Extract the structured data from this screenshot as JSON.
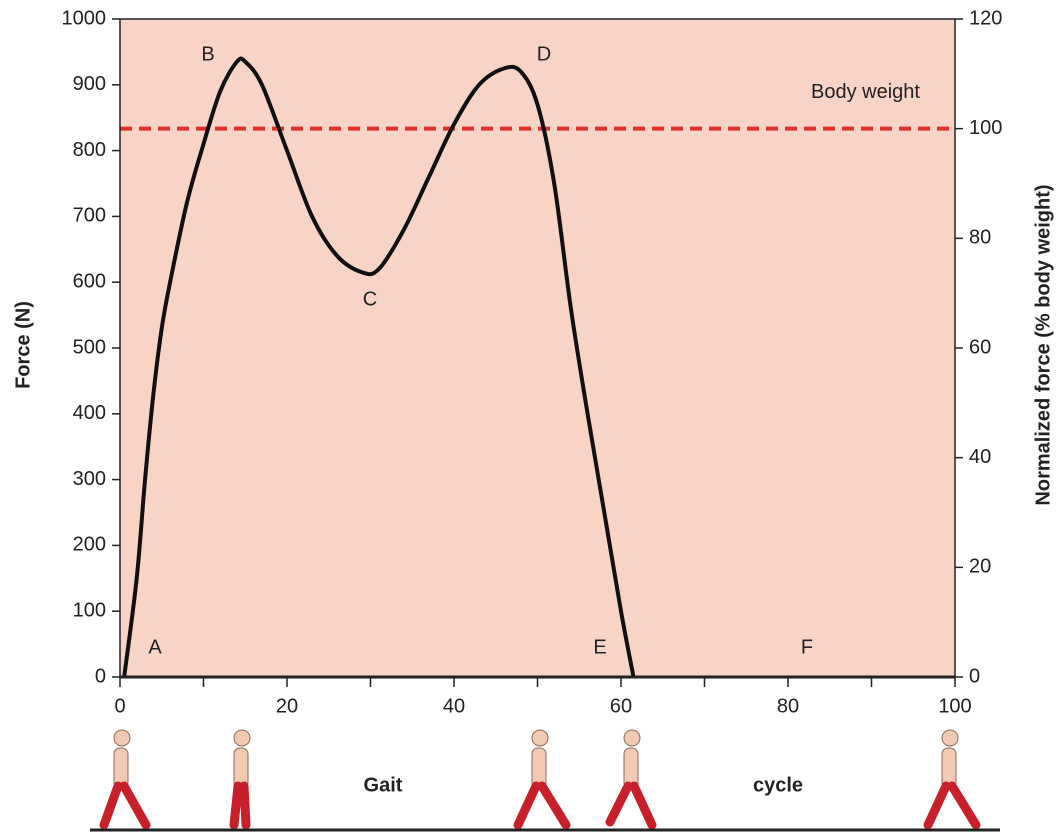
{
  "chart_data": {
    "type": "line",
    "ylabel": "Force (N)",
    "y2label": "Normalized force (% body weight)",
    "x_label": [
      "Gait",
      "cycle"
    ],
    "xlim": [
      0,
      100
    ],
    "xticks": [
      0,
      20,
      40,
      60,
      80,
      100
    ],
    "xminor_ticks": [
      10,
      30,
      50,
      70,
      90
    ],
    "ylim": [
      0,
      1000
    ],
    "yticks": [
      0,
      100,
      200,
      300,
      400,
      500,
      600,
      700,
      800,
      900,
      1000
    ],
    "y2lim": [
      0,
      120
    ],
    "y2ticks": [
      0,
      20,
      40,
      60,
      80,
      100,
      120
    ],
    "background": "#f8d4c7",
    "series": [
      {
        "color": "#111111",
        "x": [
          0.5,
          2,
          3,
          4,
          5,
          6,
          8,
          10,
          12,
          14,
          15,
          17,
          20,
          23,
          26,
          29,
          31,
          34,
          37,
          40,
          43,
          46,
          48,
          50,
          52,
          54,
          56,
          58,
          60,
          61.5
        ],
        "values": [
          0,
          150,
          300,
          430,
          530,
          600,
          720,
          810,
          890,
          935,
          935,
          900,
          800,
          700,
          640,
          615,
          620,
          680,
          760,
          840,
          900,
          925,
          920,
          870,
          750,
          560,
          400,
          250,
          100,
          0
        ]
      }
    ],
    "reference_line": {
      "label": "Body weight",
      "value": 100,
      "axis": "y2",
      "color": "#e0302c"
    },
    "annotations": [
      "A",
      "B",
      "C",
      "D",
      "E",
      "F"
    ]
  }
}
